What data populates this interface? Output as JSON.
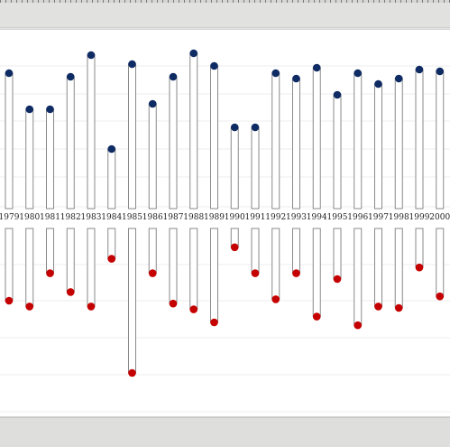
{
  "chart_data": {
    "type": "lollipop-diverging",
    "categories": [
      "1979",
      "1980",
      "1981",
      "1982",
      "1983",
      "1984",
      "1985",
      "1986",
      "1987",
      "1988",
      "1989",
      "1990",
      "1991",
      "1992",
      "1993",
      "1994",
      "1995",
      "1996",
      "1997",
      "1998",
      "1999",
      "2000"
    ],
    "series": [
      {
        "color": "#0f2b63",
        "values": [
          7.5,
          5.5,
          5.5,
          7.3,
          8.5,
          3.3,
          8.0,
          5.8,
          7.3,
          8.6,
          7.9,
          4.5,
          4.5,
          7.5,
          7.2,
          7.8,
          6.3,
          7.5,
          6.9,
          7.2,
          7.7,
          7.6
        ]
      },
      {
        "color": "#c40000",
        "values": [
          -5.0,
          -5.4,
          -3.1,
          -4.4,
          -5.4,
          -2.1,
          -10.0,
          -3.1,
          -5.2,
          -5.6,
          -6.5,
          -1.3,
          -3.1,
          -4.9,
          -3.1,
          -6.1,
          -3.5,
          -6.7,
          -5.4,
          -5.5,
          -2.7,
          -4.7
        ]
      }
    ],
    "ylim_top": [
      0,
      10
    ],
    "ylim_bottom": [
      -11,
      0
    ],
    "grid": true,
    "title": "",
    "xlabel": "",
    "ylabel": ""
  }
}
